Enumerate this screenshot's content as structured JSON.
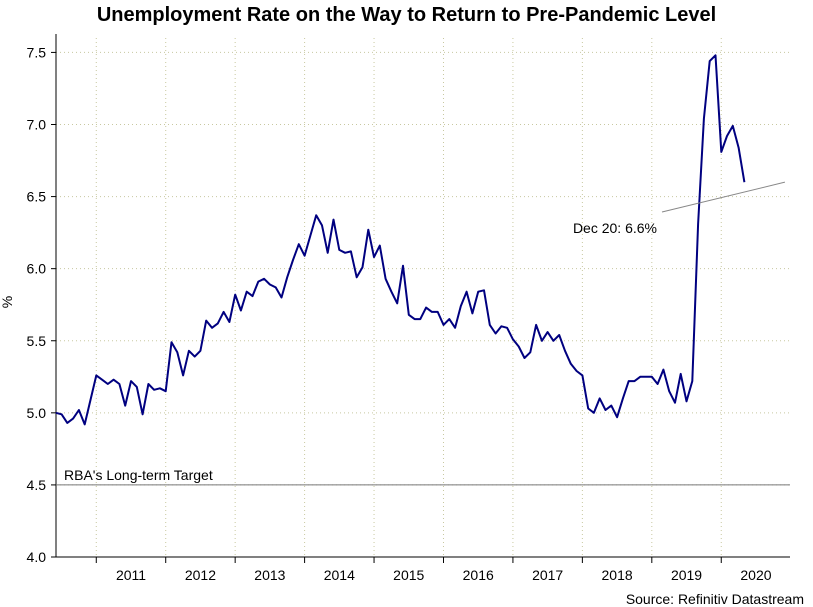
{
  "chart_data": {
    "type": "line",
    "title": "Unemployment Rate on the Way to Return to Pre-Pandemic Level",
    "xlabel": "",
    "ylabel": "%",
    "ylim": [
      4.0,
      7.6
    ],
    "xlim": [
      2010.42,
      2020.99
    ],
    "yticks": [
      4.0,
      4.5,
      5.0,
      5.5,
      6.0,
      6.5,
      7.0,
      7.5
    ],
    "ytick_labels": [
      "4.0",
      "4.5",
      "5.0",
      "5.5",
      "6.0",
      "6.5",
      "7.0",
      "7.5"
    ],
    "xtick_labels": [
      "2011",
      "2012",
      "2013",
      "2014",
      "2015",
      "2016",
      "2017",
      "2018",
      "2019",
      "2020"
    ],
    "grid": true,
    "series": [
      {
        "name": "Unemployment Rate",
        "color": "#000080",
        "start": "2010-06",
        "values": [
          5.0,
          4.99,
          4.93,
          4.96,
          5.02,
          4.92,
          5.09,
          5.26,
          5.23,
          5.2,
          5.23,
          5.2,
          5.05,
          5.22,
          5.18,
          4.99,
          5.2,
          5.16,
          5.17,
          5.15,
          5.49,
          5.42,
          5.26,
          5.43,
          5.39,
          5.43,
          5.64,
          5.59,
          5.62,
          5.7,
          5.63,
          5.82,
          5.71,
          5.84,
          5.81,
          5.91,
          5.93,
          5.89,
          5.87,
          5.8,
          5.94,
          6.06,
          6.17,
          6.09,
          6.23,
          6.37,
          6.3,
          6.11,
          6.34,
          6.13,
          6.11,
          6.12,
          5.94,
          6.01,
          6.27,
          6.08,
          6.16,
          5.93,
          5.84,
          5.76,
          6.02,
          5.68,
          5.65,
          5.65,
          5.73,
          5.7,
          5.7,
          5.61,
          5.65,
          5.59,
          5.74,
          5.84,
          5.69,
          5.84,
          5.85,
          5.61,
          5.55,
          5.6,
          5.59,
          5.51,
          5.46,
          5.38,
          5.42,
          5.61,
          5.5,
          5.56,
          5.5,
          5.54,
          5.43,
          5.34,
          5.29,
          5.26,
          5.03,
          5.0,
          5.1,
          5.02,
          5.05,
          4.97,
          5.1,
          5.22,
          5.22,
          5.25,
          5.25,
          5.25,
          5.2,
          5.3,
          5.15,
          5.07,
          5.27,
          5.08,
          5.22,
          6.31,
          7.04,
          7.44,
          7.48,
          6.81,
          6.92,
          6.99,
          6.84,
          6.6
        ]
      }
    ],
    "reference_line": {
      "label": "RBA's Long-term Target",
      "value": 4.5
    },
    "annotations": [
      {
        "text": "Dec 20: 6.6%",
        "x": "2020-12",
        "y": 6.6
      }
    ],
    "source": "Source: Refinitiv Datastream"
  }
}
